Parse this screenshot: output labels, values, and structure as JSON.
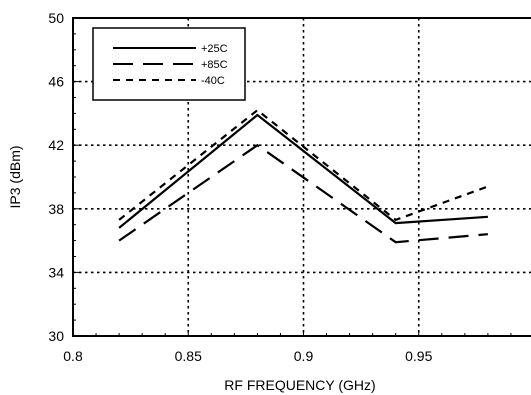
{
  "chart_data": {
    "type": "line",
    "xlabel": "RF FREQUENCY (GHz)",
    "ylabel": "IP3 (dBm)",
    "xlim": [
      0.8,
      1.0
    ],
    "ylim": [
      30,
      50
    ],
    "xticks": [
      0.8,
      0.85,
      0.9,
      0.95
    ],
    "xtick_labels": [
      "0.8",
      "0.85",
      "0.9",
      "0.95"
    ],
    "yticks": [
      30,
      34,
      38,
      42,
      46,
      50
    ],
    "ytick_labels": [
      "30",
      "34",
      "38",
      "42",
      "46",
      "50"
    ],
    "grid": true,
    "legend_position": "top-left",
    "series": [
      {
        "name": "+25C",
        "style": "solid",
        "x": [
          0.82,
          0.88,
          0.94,
          0.98
        ],
        "y": [
          36.8,
          43.9,
          37.1,
          37.5
        ]
      },
      {
        "name": "+85C",
        "style": "long-dash",
        "x": [
          0.82,
          0.88,
          0.94,
          0.98
        ],
        "y": [
          36.0,
          42.0,
          35.9,
          36.4
        ]
      },
      {
        "name": "-40C",
        "style": "short-dash",
        "x": [
          0.82,
          0.88,
          0.94,
          0.98
        ],
        "y": [
          37.3,
          44.2,
          37.3,
          39.4
        ]
      }
    ]
  }
}
